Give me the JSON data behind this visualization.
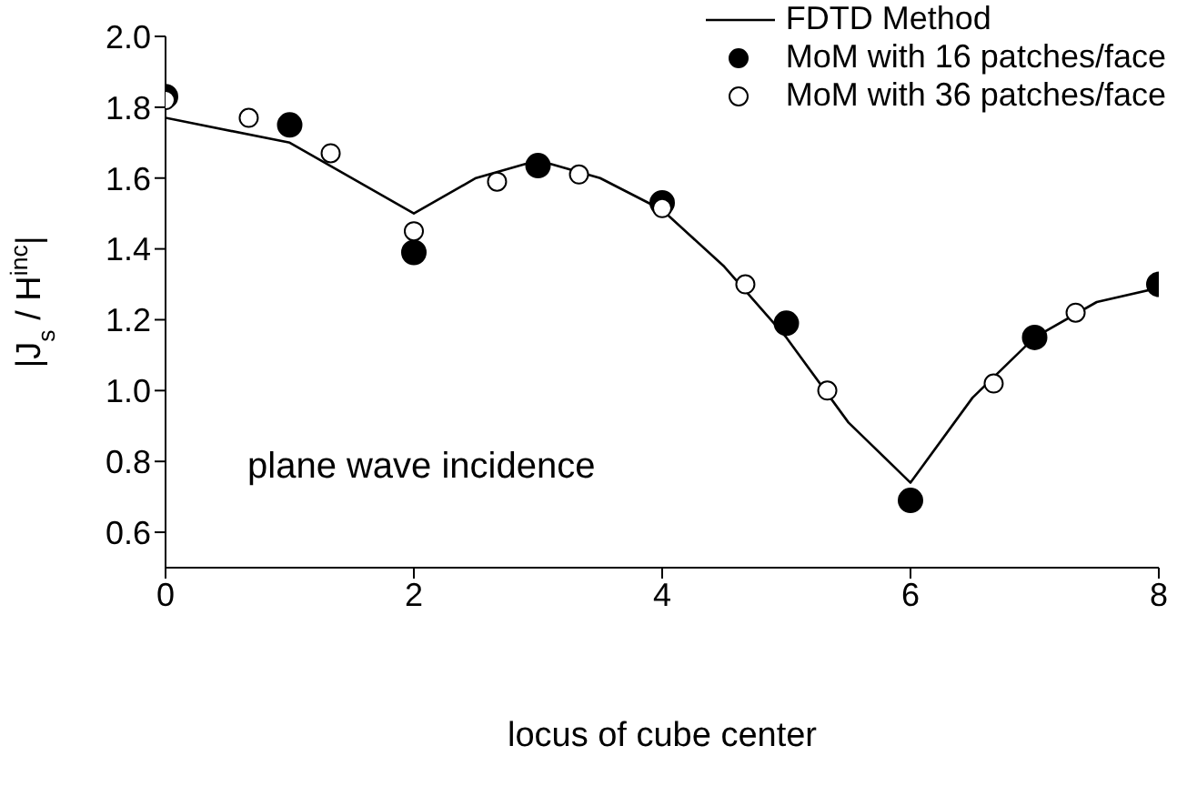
{
  "chart_data": {
    "type": "scatter",
    "xlabel": "locus of cube center",
    "ylabel": "|J$_{s}$ / H$^{inc}$|",
    "annotations": [
      "plane wave incidence"
    ],
    "xlim": [
      0,
      8
    ],
    "xticks": [
      0,
      2,
      4,
      6,
      8
    ],
    "ylim": [
      0.5,
      2.0
    ],
    "yticks": [
      0.6,
      0.8,
      {
        "value": 1.0,
        "label": "1.0"
      },
      1.2,
      1.4,
      1.6,
      1.8,
      {
        "value": 2.0,
        "label": "2.0"
      }
    ],
    "legend": "top right",
    "grid": false,
    "marker": "circle",
    "series": [
      {
        "name": "FDTD Method",
        "type": "line",
        "marker": "none",
        "color": "#000000",
        "x": [
          0,
          1,
          2,
          2.5,
          3,
          3.5,
          4,
          4.5,
          5,
          5.5,
          6,
          6.5,
          7,
          7.5,
          8
        ],
        "values": [
          1.77,
          1.7,
          1.5,
          1.6,
          1.65,
          1.6,
          1.51,
          1.35,
          1.15,
          0.91,
          0.74,
          0.98,
          1.15,
          1.25,
          1.29
        ]
      },
      {
        "name": "MoM with 16 patches/face",
        "color": "#000000",
        "x": [
          0,
          1,
          2,
          3,
          4,
          5,
          6,
          7,
          8
        ],
        "values": [
          1.83,
          1.75,
          1.39,
          1.635,
          1.53,
          1.19,
          0.69,
          1.15,
          1.3
        ]
      },
      {
        "name": "MoM with 36 patches/face",
        "color": "#ffffff",
        "x": [
          0,
          0.67,
          1.33,
          2,
          2.67,
          3.33,
          4,
          4.67,
          5.33,
          6.67,
          7.33
        ],
        "values": [
          1.82,
          1.77,
          1.67,
          1.45,
          1.59,
          1.61,
          1.515,
          1.3,
          1.0,
          1.02,
          1.22
        ]
      }
    ]
  }
}
